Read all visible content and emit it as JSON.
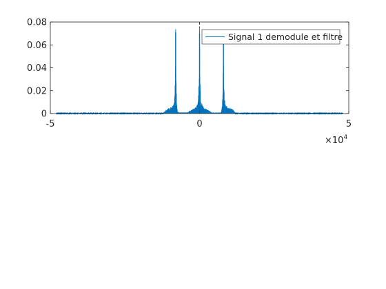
{
  "chart_data": {
    "type": "line",
    "title": "",
    "xlabel": "",
    "ylabel": "",
    "xlim": [
      -50000,
      50000
    ],
    "ylim": [
      0,
      0.08
    ],
    "x_ticks": [
      -50000,
      0,
      50000
    ],
    "x_tick_labels": [
      "-5",
      "0",
      "5"
    ],
    "x_exponent_base": "×10",
    "x_exponent_power": "4",
    "y_ticks": [
      0,
      0.02,
      0.04,
      0.06,
      0.08
    ],
    "y_tick_labels": [
      "0",
      "0.02",
      "0.04",
      "0.06",
      "0.08"
    ],
    "grid": false,
    "legend_position": "top-right",
    "series": [
      {
        "name": "Signal 1 demodule et filtre",
        "color": "#0072BD",
        "peaks": [
          {
            "x": -8000,
            "y": 0.071
          },
          {
            "x": 0,
            "y": 0.07
          },
          {
            "x": 8000,
            "y": 0.066
          }
        ],
        "sidelobe_envelope": [
          {
            "x": -12000,
            "y": 0.001
          },
          {
            "x": -11000,
            "y": 0.004
          },
          {
            "x": -9500,
            "y": 0.006
          },
          {
            "x": -8500,
            "y": 0.008
          },
          {
            "x": -7500,
            "y": 0.001
          },
          {
            "x": -4000,
            "y": 0.001
          },
          {
            "x": -3000,
            "y": 0.003
          },
          {
            "x": -1500,
            "y": 0.005
          },
          {
            "x": -500,
            "y": 0.009
          },
          {
            "x": 500,
            "y": 0.009
          },
          {
            "x": 1500,
            "y": 0.005
          },
          {
            "x": 3000,
            "y": 0.003
          },
          {
            "x": 4000,
            "y": 0.001
          },
          {
            "x": 7500,
            "y": 0.001
          },
          {
            "x": 8500,
            "y": 0.008
          },
          {
            "x": 9500,
            "y": 0.006
          },
          {
            "x": 11000,
            "y": 0.004
          },
          {
            "x": 12000,
            "y": 0.001
          }
        ],
        "baseline": 0.0003
      }
    ]
  }
}
